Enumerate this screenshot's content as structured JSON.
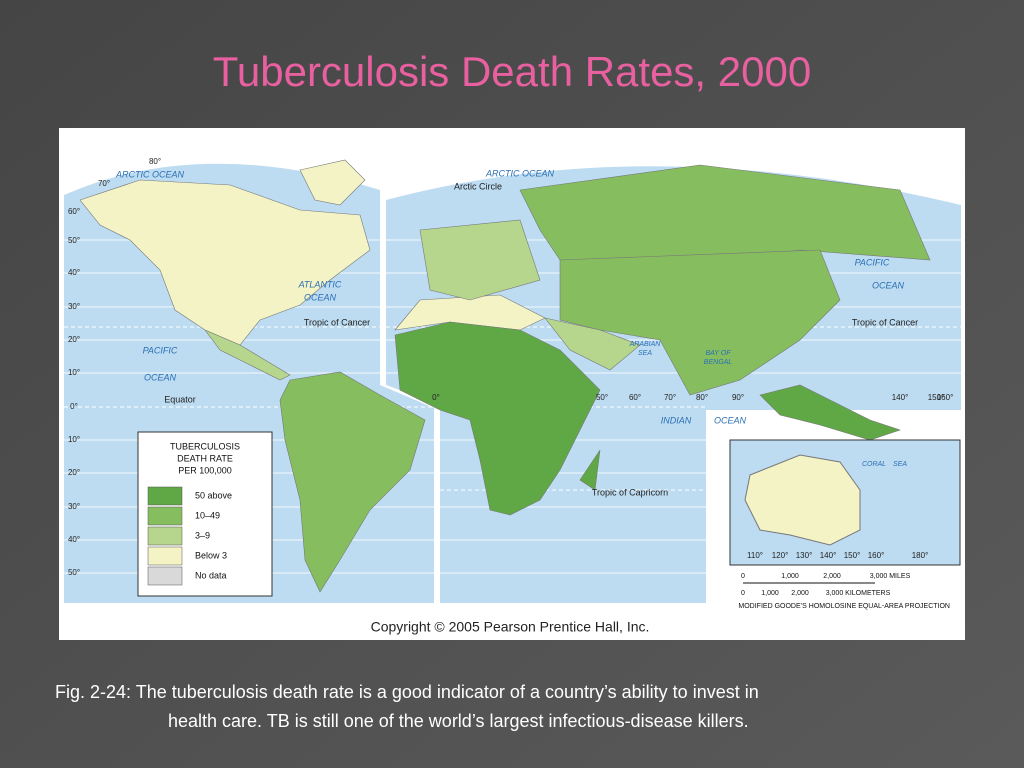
{
  "title": "Tuberculosis Death Rates, 2000",
  "map": {
    "oceans": [
      "ARCTIC OCEAN",
      "ARCTIC OCEAN",
      "ATLANTIC",
      "OCEAN",
      "PACIFIC",
      "OCEAN",
      "PACIFIC",
      "OCEAN",
      "INDIAN",
      "OCEAN",
      "ARABIAN",
      "SEA",
      "BAY OF",
      "BENGAL",
      "CORAL",
      "SEA"
    ],
    "lines": [
      "Arctic Circle",
      "Tropic of Cancer",
      "Equator",
      "Tropic of Capricorn",
      "Tropic of Cancer"
    ],
    "left_latitudes": [
      "80°",
      "70°",
      "60°",
      "50°",
      "40°",
      "30°",
      "20°",
      "10°",
      "0°",
      "10°",
      "20°",
      "30°",
      "40°",
      "50°"
    ],
    "longitudes": [
      "0°",
      "50°",
      "60°",
      "70°",
      "80°",
      "90°",
      "140°",
      "150°",
      "160°"
    ],
    "inset_longitudes": [
      "110°",
      "120°",
      "130°",
      "140°",
      "150°",
      "160°",
      "180°"
    ],
    "legend": {
      "title": [
        "TUBERCULOSIS",
        "DEATH RATE",
        "PER 100,000"
      ],
      "items": [
        {
          "label": "50 above",
          "color": "#5fa845"
        },
        {
          "label": "10–49",
          "color": "#86be5f"
        },
        {
          "label": "3–9",
          "color": "#b5d68c"
        },
        {
          "label": "Below 3",
          "color": "#f3f3c6"
        },
        {
          "label": "No data",
          "color": "#d9d9d9"
        }
      ]
    },
    "scale": {
      "miles": [
        "0",
        "1,000",
        "2,000",
        "3,000 MILES"
      ],
      "km": [
        "0",
        "1,000",
        "2,000",
        "3,000 KILOMETERS"
      ]
    },
    "projection": "MODIFIED GOODE’S HOMOLOSINE EQUAL-AREA PROJECTION"
  },
  "copyright": "Copyright © 2005 Pearson Prentice Hall, Inc.",
  "caption": [
    "Fig. 2-24: The tuberculosis death rate is a good indicator of a country’s ability to invest in",
    "health care. TB is still one of the world’s largest infectious-disease killers."
  ]
}
